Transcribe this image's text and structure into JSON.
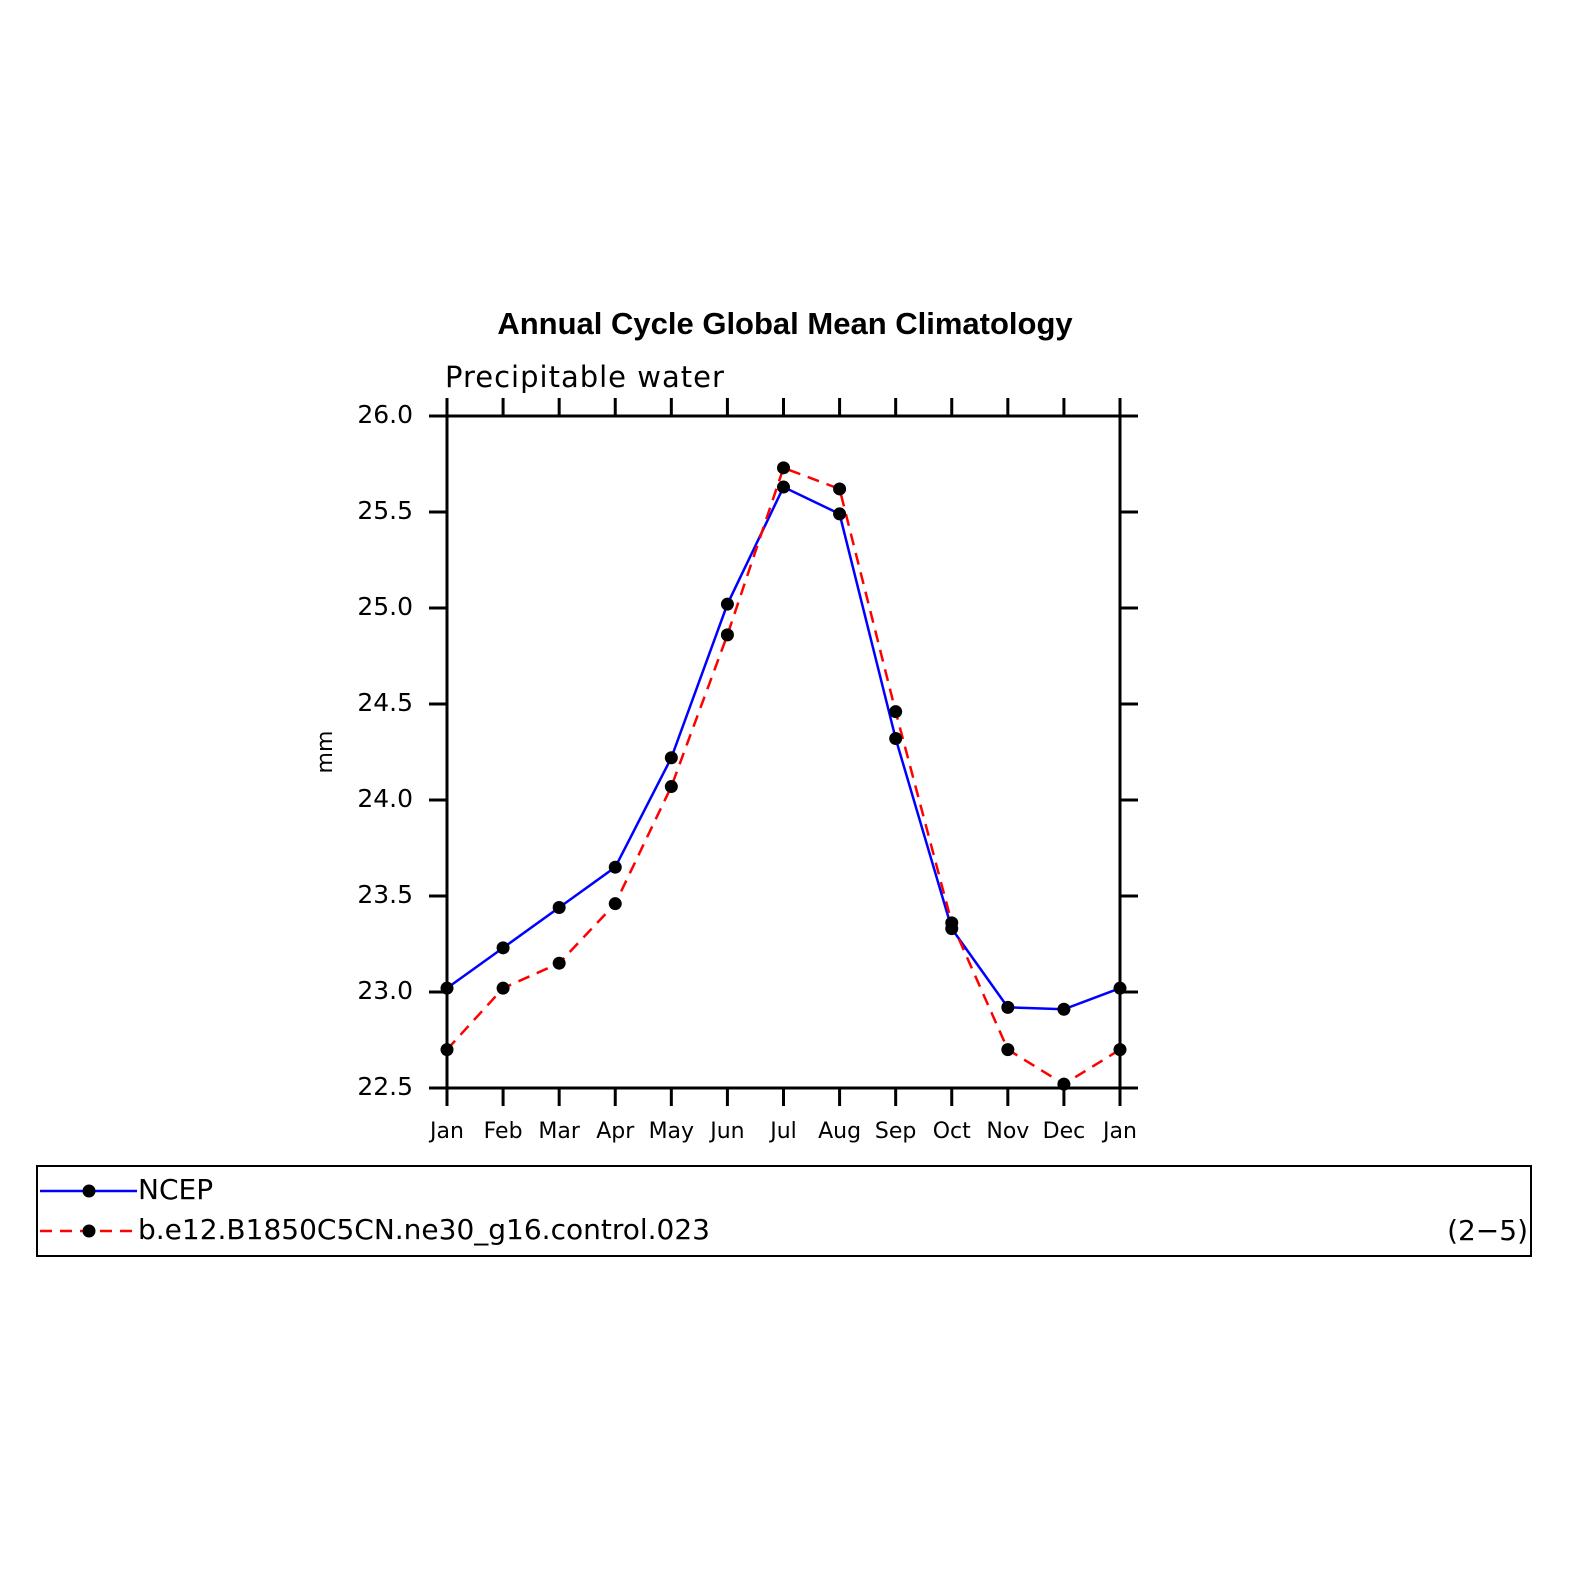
{
  "chart_data": {
    "type": "line",
    "title": "Annual Cycle Global Mean Climatology",
    "subtitle": "Precipitable water",
    "y_label": "mm",
    "annotation": "(2−5)",
    "categories": [
      "Jan",
      "Feb",
      "Mar",
      "Apr",
      "May",
      "Jun",
      "Jul",
      "Aug",
      "Sep",
      "Oct",
      "Nov",
      "Dec",
      "Jan"
    ],
    "series": [
      {
        "name": "NCEP",
        "color": "#0000ff",
        "line_style": "solid",
        "values": [
          23.02,
          23.23,
          23.44,
          23.65,
          24.22,
          25.02,
          25.63,
          25.49,
          24.32,
          23.33,
          22.92,
          22.91,
          23.02
        ]
      },
      {
        "name": "b.e12.B1850C5CN.ne30_g16.control.023",
        "color": "#ff0000",
        "line_style": "dashed",
        "values": [
          22.7,
          23.02,
          23.15,
          23.46,
          24.07,
          24.86,
          25.73,
          25.62,
          24.46,
          23.36,
          22.7,
          22.52,
          22.7
        ]
      }
    ],
    "ylim": [
      22.5,
      26.0
    ],
    "yticks": [
      {
        "value": 22.5,
        "label": "22.5"
      },
      {
        "value": 23,
        "label": "23.0"
      },
      {
        "value": 23.5,
        "label": "23.5"
      },
      {
        "value": 24,
        "label": "24.0"
      },
      {
        "value": 24.5,
        "label": "24.5"
      },
      {
        "value": 25,
        "label": "25.0"
      },
      {
        "value": 25.5,
        "label": "25.5"
      },
      {
        "value": 26,
        "label": "26.0"
      }
    ],
    "marker_color": "#000000",
    "grid": false
  }
}
